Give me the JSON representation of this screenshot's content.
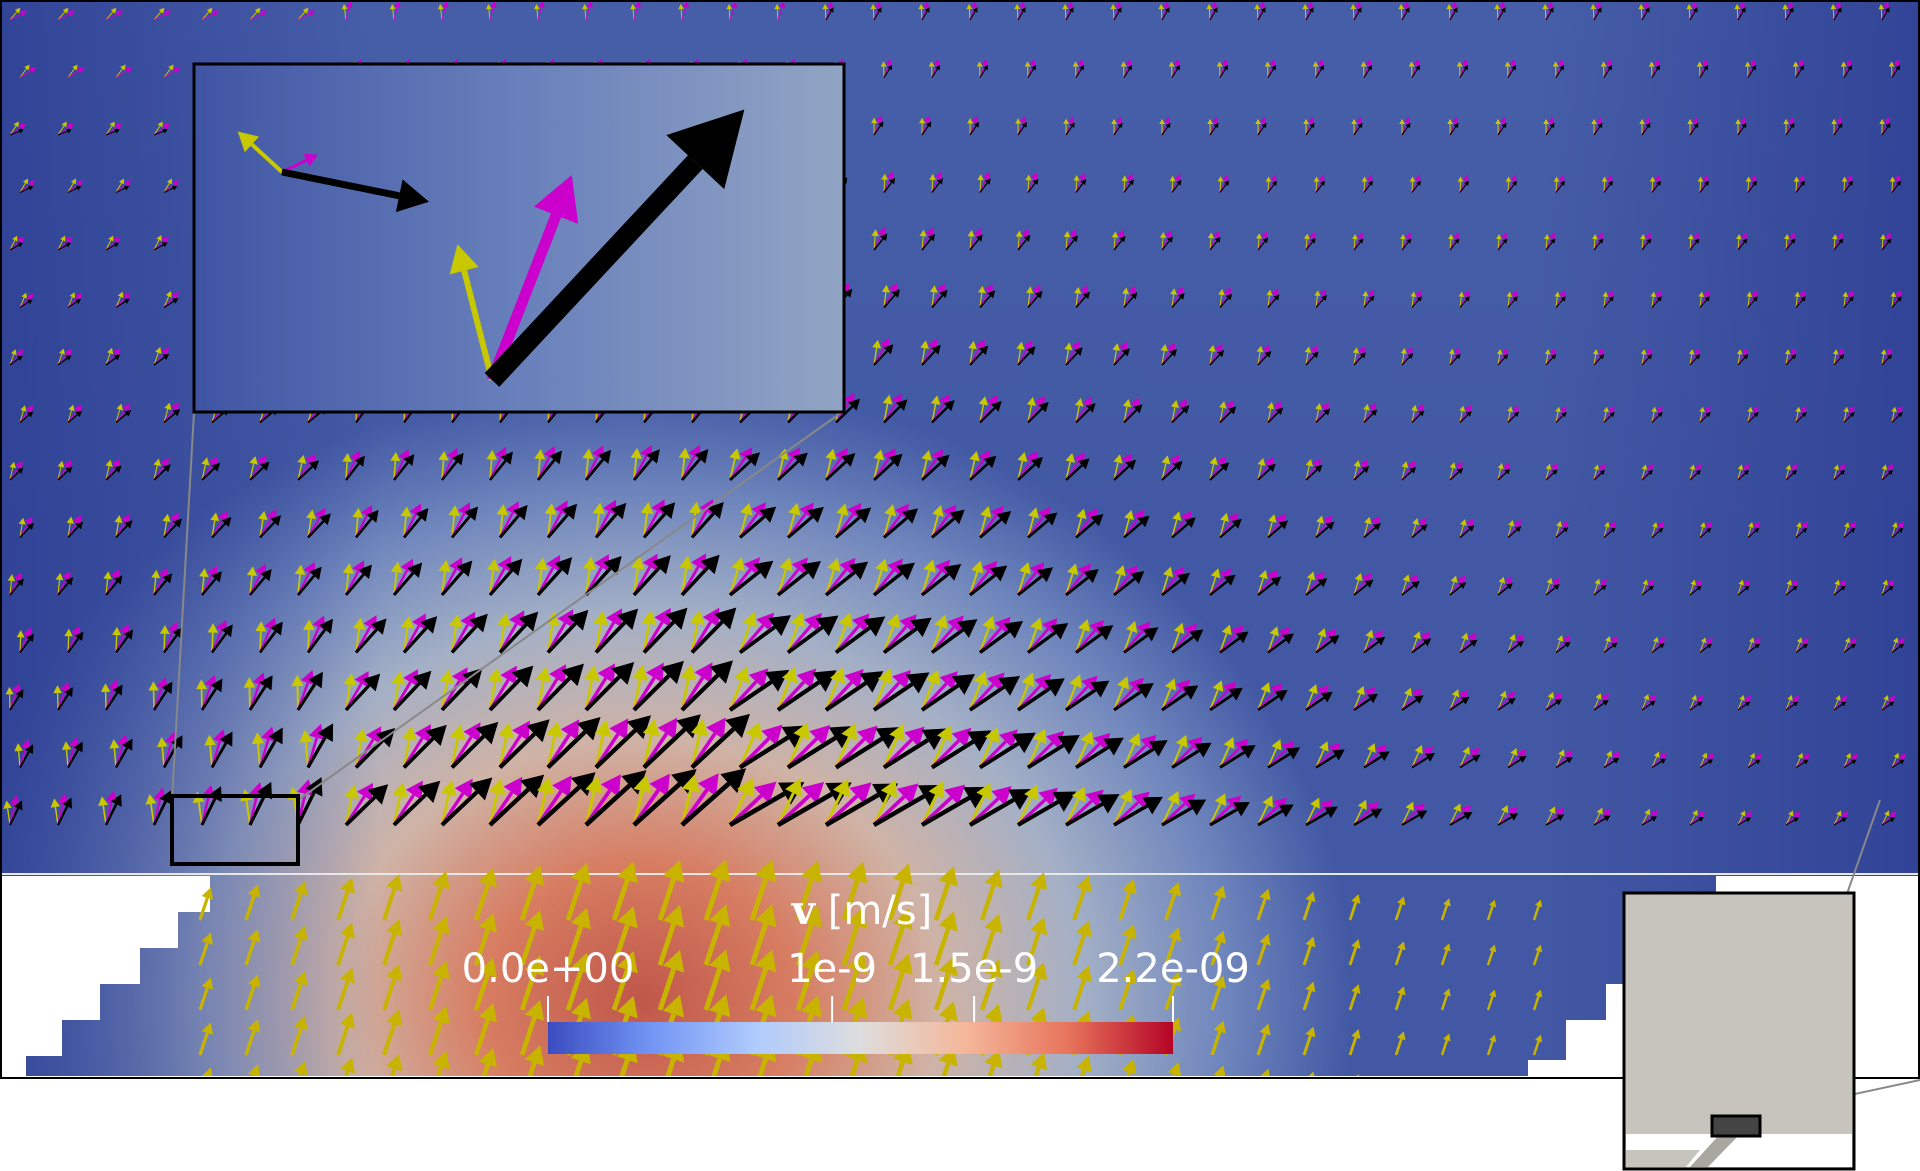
{
  "colorbar": {
    "title_symbol": "v",
    "title_unit": " [m/s]",
    "tick_labels": [
      "0.0e+00",
      "1e-9",
      "1.5e-9",
      "2.2e-09"
    ],
    "tick_values": [
      0.0,
      1e-09,
      1.5e-09,
      2.2e-09
    ],
    "range": [
      0.0,
      2.2e-09
    ],
    "colormap": [
      "#3b4cc0",
      "#7396f5",
      "#b0cbfc",
      "#dddddd",
      "#f5b79a",
      "#e7745b",
      "#b40426"
    ]
  },
  "arrow_colors": {
    "black": "#000000",
    "magenta": "#cc00cc",
    "yellow": "#c8c800"
  },
  "frame_color": "#000000",
  "inset_background": "#c6c4bc"
}
